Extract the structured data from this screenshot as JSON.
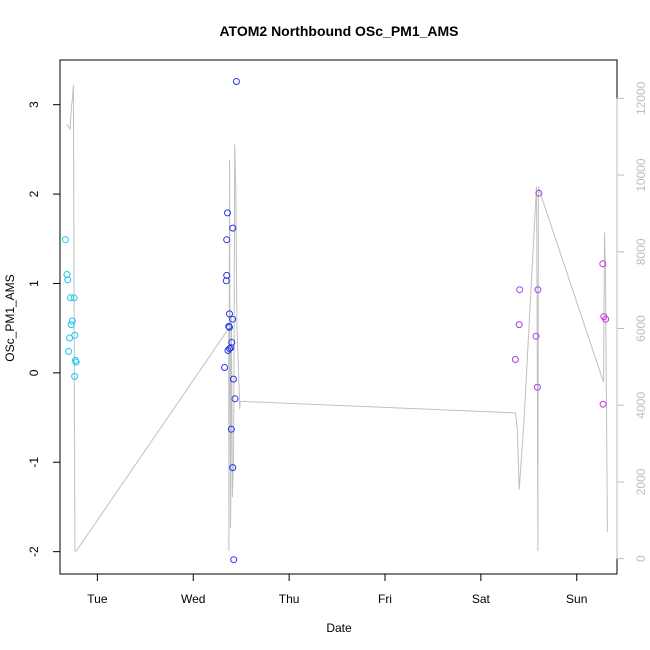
{
  "chart_data": {
    "type": "scatter",
    "title": "ATOM2 Northbound OSc_PM1_AMS",
    "xlabel": "Date",
    "ylabel": "OSc_PM1_AMS",
    "x_units": "days since Tue 00:00",
    "xlim": [
      -0.39,
      5.42
    ],
    "ylim": [
      -2.25,
      3.5
    ],
    "y2lim": [
      -400,
      13000
    ],
    "x_ticks": [
      {
        "value": 0,
        "label": "Tue"
      },
      {
        "value": 1,
        "label": "Wed"
      },
      {
        "value": 2,
        "label": "Thu"
      },
      {
        "value": 3,
        "label": "Fri"
      },
      {
        "value": 4,
        "label": "Sat"
      },
      {
        "value": 5,
        "label": "Sun"
      }
    ],
    "y_ticks": [
      -2,
      -1,
      0,
      1,
      2,
      3
    ],
    "y2_ticks": [
      0,
      2000,
      4000,
      6000,
      8000,
      10000,
      12000
    ],
    "colors": {
      "cyan": "#17c9f0",
      "blue": "#2538e6",
      "purple": "#a23fe6",
      "magenta": "#d22de8",
      "line": "#c0c0c0",
      "axis": "#000000",
      "right_axis": "#bebebe"
    },
    "series": [
      {
        "name": "cyan",
        "color_key": "cyan",
        "points": [
          [
            -0.334,
            1.49
          ],
          [
            -0.318,
            1.1
          ],
          [
            -0.31,
            1.04
          ],
          [
            -0.3,
            0.24
          ],
          [
            -0.29,
            0.39
          ],
          [
            -0.28,
            0.84
          ],
          [
            -0.273,
            0.54
          ],
          [
            -0.262,
            0.58
          ],
          [
            -0.244,
            0.84
          ],
          [
            -0.236,
            0.42
          ],
          [
            -0.229,
            0.14
          ],
          [
            -0.222,
            0.12
          ],
          [
            -0.238,
            -0.04
          ]
        ]
      },
      {
        "name": "blue",
        "color_key": "blue",
        "points": [
          [
            1.45,
            3.26
          ],
          [
            1.357,
            1.79
          ],
          [
            1.349,
            1.49
          ],
          [
            1.349,
            1.09
          ],
          [
            1.345,
            1.03
          ],
          [
            1.378,
            0.66
          ],
          [
            1.37,
            0.52
          ],
          [
            1.378,
            0.51
          ],
          [
            1.41,
            0.6
          ],
          [
            1.402,
            0.34
          ],
          [
            1.392,
            0.28
          ],
          [
            1.378,
            0.27
          ],
          [
            1.362,
            0.25
          ],
          [
            1.327,
            0.06
          ],
          [
            1.419,
            -0.07
          ],
          [
            1.435,
            -0.29
          ],
          [
            1.397,
            -0.63
          ],
          [
            1.411,
            -1.06
          ],
          [
            1.422,
            -2.09
          ],
          [
            1.412,
            1.62
          ]
        ]
      },
      {
        "name": "purple",
        "color_key": "purple",
        "points": [
          [
            4.36,
            0.15
          ],
          [
            4.4,
            0.54
          ],
          [
            4.405,
            0.93
          ],
          [
            4.575,
            0.41
          ],
          [
            4.59,
            -0.16
          ],
          [
            4.595,
            0.93
          ],
          [
            4.605,
            2.01
          ]
        ]
      },
      {
        "name": "magenta",
        "color_key": "magenta",
        "points": [
          [
            5.272,
            1.22
          ],
          [
            5.275,
            -0.35
          ],
          [
            5.282,
            0.63
          ],
          [
            5.302,
            0.6
          ]
        ]
      }
    ],
    "secondary_line": {
      "name": "grey-line",
      "color_key": "line",
      "axis": "right",
      "points": [
        [
          -0.32,
          11300
        ],
        [
          -0.31,
          11300
        ],
        [
          -0.3,
          11250
        ],
        [
          -0.285,
          11200
        ],
        [
          -0.27,
          11800
        ],
        [
          -0.26,
          12000
        ],
        [
          -0.25,
          12350
        ],
        [
          -0.235,
          200
        ],
        [
          -0.22,
          200
        ],
        [
          1.37,
          6000
        ],
        [
          1.372,
          200
        ],
        [
          1.378,
          10400
        ],
        [
          1.39,
          800
        ],
        [
          1.398,
          6300
        ],
        [
          1.408,
          1600
        ],
        [
          1.42,
          2600
        ],
        [
          1.426,
          5400
        ],
        [
          1.432,
          10800
        ],
        [
          1.445,
          9500
        ],
        [
          1.455,
          6100
        ],
        [
          1.485,
          3900
        ],
        [
          1.49,
          4100
        ],
        [
          1.5,
          4100
        ],
        [
          4.36,
          3800
        ],
        [
          4.38,
          3400
        ],
        [
          4.4,
          1800
        ],
        [
          4.45,
          3600
        ],
        [
          4.58,
          9700
        ],
        [
          4.585,
          8000
        ],
        [
          4.595,
          200
        ],
        [
          4.6,
          9700
        ],
        [
          4.61,
          9600
        ],
        [
          5.28,
          4600
        ],
        [
          5.29,
          8500
        ],
        [
          5.3,
          7500
        ],
        [
          5.32,
          700
        ]
      ]
    }
  }
}
